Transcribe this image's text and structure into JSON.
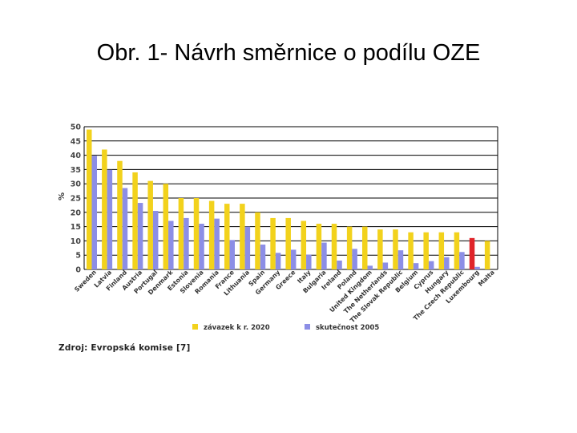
{
  "slide": {
    "title": "Obr. 1- Návrh směrnice o podílu OZE",
    "source": "Zdroj: Evropská komise [7]"
  },
  "colors": {
    "target": "#f2d21c",
    "target_highlight": "#e0242a",
    "actual": "#8c8ee6",
    "grid": "#000000"
  },
  "chart_data": {
    "type": "bar",
    "ylabel": "%",
    "ylim": [
      0,
      50
    ],
    "yticks": [
      0,
      5,
      10,
      15,
      20,
      25,
      30,
      35,
      40,
      45,
      50
    ],
    "grid": true,
    "legend_position": "bottom",
    "categories": [
      "Sweden",
      "Latvia",
      "Finland",
      "Austria",
      "Portugal",
      "Denmark",
      "Estonia",
      "Slovenia",
      "Romania",
      "France",
      "Lithuania",
      "Spain",
      "Germany",
      "Greece",
      "Italy",
      "Bulgaria",
      "Ireland",
      "Poland",
      "United Kingdom",
      "The Netherlands",
      "The Slovak Republic",
      "Belgium",
      "Cyprus",
      "Hungary",
      "The Czech Republic",
      "Luxembourg",
      "Malta"
    ],
    "highlighted_category": "Luxembourg",
    "series": [
      {
        "name": "závazek k r. 2020",
        "values": [
          49,
          42,
          38,
          34,
          31,
          30,
          25,
          25,
          24,
          23,
          23,
          20,
          18,
          18,
          17,
          16,
          16,
          15,
          15,
          14,
          14,
          13,
          13,
          13,
          13,
          11,
          10
        ]
      },
      {
        "name": "skutečnost 2005",
        "values": [
          39.8,
          34.9,
          28.5,
          23.3,
          20.5,
          17,
          18,
          16,
          17.8,
          10.3,
          15,
          8.7,
          5.8,
          6.9,
          5.2,
          9.4,
          3.1,
          7.2,
          1.3,
          2.4,
          6.7,
          2.2,
          2.9,
          4.3,
          6.1,
          0.9,
          0
        ]
      }
    ]
  }
}
